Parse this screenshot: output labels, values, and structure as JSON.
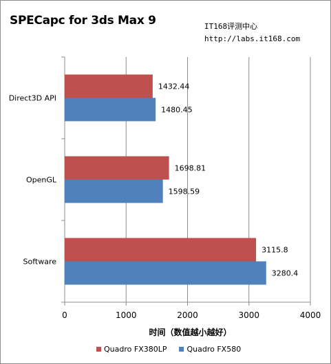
{
  "chart_data": {
    "type": "bar",
    "orientation": "horizontal",
    "title": "SPECapc for 3ds Max 9",
    "categories": [
      "Direct3D API",
      "OpenGL",
      "Software"
    ],
    "series": [
      {
        "name": "Quadro FX380LP",
        "color": "#c0504d",
        "values": [
          1432.44,
          1698.81,
          3115.8
        ],
        "labels": [
          "1432.44",
          "1698.81",
          "3115.8"
        ]
      },
      {
        "name": "Quadro FX580",
        "color": "#4f81bd",
        "values": [
          1480.45,
          1598.59,
          3280.4
        ],
        "labels": [
          "1480.45",
          "1598.59",
          "3280.4"
        ]
      }
    ],
    "xlabel": "时间（数值越小越好）",
    "xlim": [
      0,
      4000
    ],
    "xticks": [
      0,
      1000,
      2000,
      3000,
      4000
    ],
    "grid": true,
    "legend_position": "bottom"
  },
  "watermark": {
    "line1": "IT168评测中心",
    "line2": "http://labs.it168.com"
  }
}
